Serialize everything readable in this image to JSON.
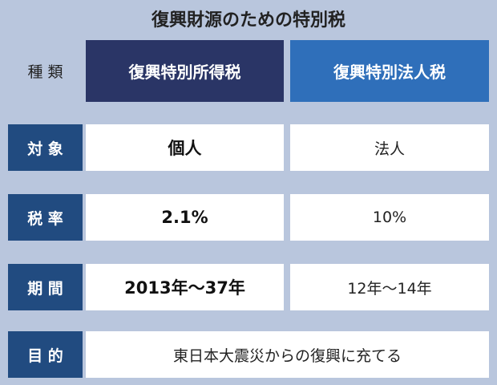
{
  "title": "復興財源のための特別税",
  "table": {
    "header": {
      "label": "種 類",
      "columns": [
        "復興特別所得税",
        "復興特別法人税"
      ]
    },
    "rows": [
      {
        "label": "対 象",
        "cells": [
          "個人",
          "法人"
        ]
      },
      {
        "label": "税 率",
        "cells": [
          "2.1%",
          "10%"
        ]
      },
      {
        "label": "期 間",
        "cells": [
          "2013年～37年",
          "12年～14年"
        ]
      },
      {
        "label": "目 的",
        "cells": [
          "東日本大震災からの復興に充てる"
        ]
      }
    ]
  }
}
